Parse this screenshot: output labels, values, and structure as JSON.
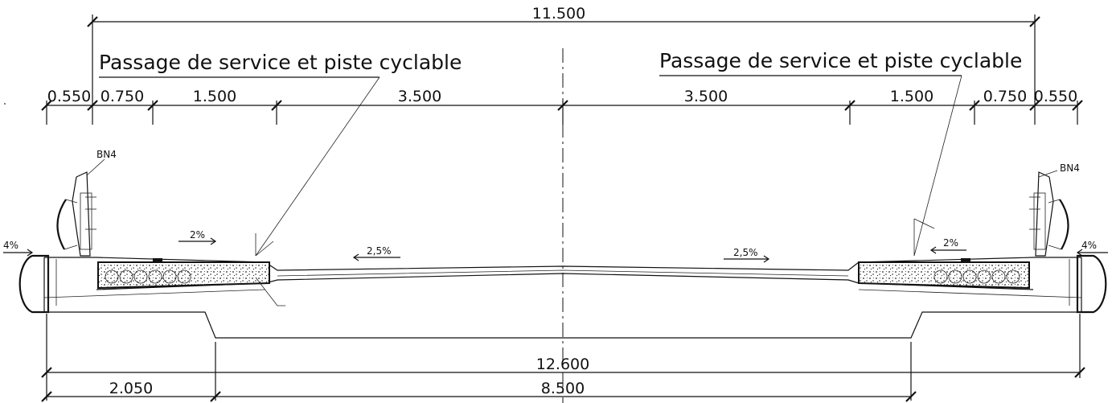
{
  "dimensions": {
    "total_top": "11.500",
    "left_edge": "0.550",
    "left_cycle": "0.750",
    "left_service": "1.500",
    "left_lane": "3.500",
    "right_lane": "3.500",
    "right_service": "1.500",
    "right_cycle": "0.750",
    "right_edge": "0.550",
    "total_bottom": "12.600",
    "bottom_left": "2.050",
    "bottom_center": "8.500"
  },
  "labels": {
    "left_title": "Passage de service et piste cyclable",
    "right_title": "Passage de service et piste cyclable",
    "left_barrier": "BN4",
    "right_barrier": "BN4",
    "left_edge_slope": "4%",
    "right_edge_slope": "4%",
    "left_walk_slope": "2%",
    "right_walk_slope": "2%",
    "left_road_slope": "2,5%",
    "right_road_slope": "2,5%"
  },
  "colors": {
    "line": "#111111",
    "background": "#ffffff"
  }
}
